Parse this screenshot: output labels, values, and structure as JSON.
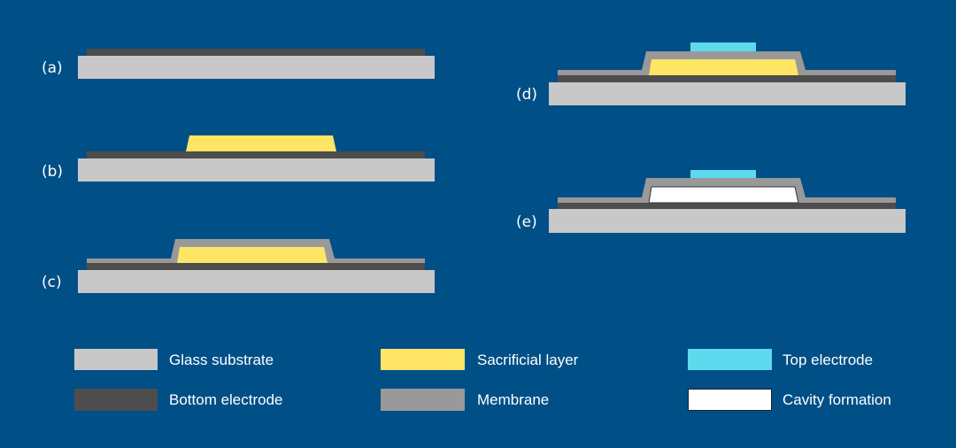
{
  "colors": {
    "background": "#004f87",
    "glass_substrate": "#c8c8c8",
    "bottom_electrode": "#4d4d4d",
    "membrane": "#999999",
    "sacrificial_layer": "#ffe566",
    "top_electrode": "#5fd9ee",
    "cavity": "#ffffff"
  },
  "steps": [
    {
      "label": "(a)"
    },
    {
      "label": "(b)"
    },
    {
      "label": "(c)"
    },
    {
      "label": "(d)"
    },
    {
      "label": "(e)"
    }
  ],
  "legend": [
    {
      "label": "Glass substrate",
      "color": "#c8c8c8"
    },
    {
      "label": "Sacrificial layer",
      "color": "#ffe566"
    },
    {
      "label": "Top electrode",
      "color": "#5fd9ee"
    },
    {
      "label": "Bottom electrode",
      "color": "#4d4d4d"
    },
    {
      "label": "Membrane",
      "color": "#999999"
    },
    {
      "label": "Cavity formation",
      "color": "#ffffff"
    }
  ]
}
